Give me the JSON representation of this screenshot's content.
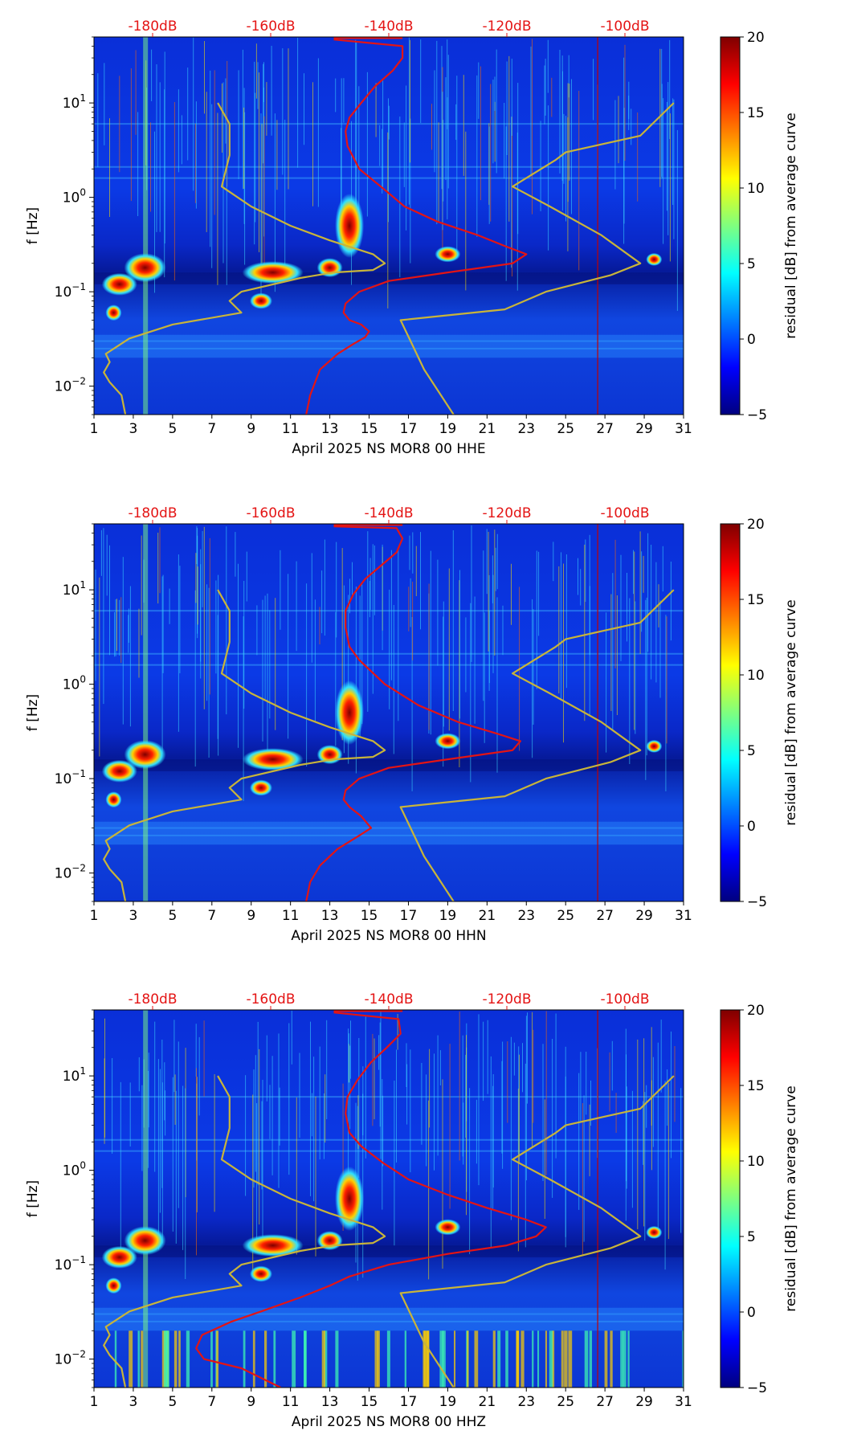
{
  "chart_data": [
    {
      "type": "heatmap",
      "title": "",
      "xlabel": "April 2025 NS MOR8 00 HHE",
      "ylabel": "f [Hz]",
      "x_ticks": [
        "1",
        "3",
        "5",
        "7",
        "9",
        "11",
        "13",
        "15",
        "17",
        "19",
        "21",
        "23",
        "25",
        "27",
        "29",
        "31"
      ],
      "xlim": [
        1,
        31
      ],
      "ylim": [
        0.005,
        50
      ],
      "y_scale": "log",
      "y_ticks": [
        {
          "base": "10",
          "exp": "−2"
        },
        {
          "base": "10",
          "exp": "−1"
        },
        {
          "base": "10",
          "exp": "0"
        },
        {
          "base": "10",
          "exp": "1"
        }
      ],
      "top_ticks": [
        "-180dB",
        "-160dB",
        "-140dB",
        "-120dB",
        "-100dB"
      ],
      "colorbar": {
        "label": "residual [dB] from average curve",
        "ticks": [
          "20",
          "15",
          "10",
          "5",
          "0",
          "−5"
        ],
        "range": [
          -5,
          20
        ]
      },
      "series": [
        {
          "color": "#e41414",
          "points": [
            [
              11.8,
              0.005
            ],
            [
              12.0,
              0.008
            ],
            [
              12.5,
              0.015
            ],
            [
              13.4,
              0.022
            ],
            [
              14.2,
              0.028
            ],
            [
              14.8,
              0.033
            ],
            [
              15.0,
              0.038
            ],
            [
              14.6,
              0.045
            ],
            [
              14.0,
              0.05
            ],
            [
              13.7,
              0.06
            ],
            [
              13.8,
              0.075
            ],
            [
              14.5,
              0.1
            ],
            [
              16.0,
              0.13
            ],
            [
              19.0,
              0.16
            ],
            [
              22.3,
              0.2
            ],
            [
              23.0,
              0.25
            ],
            [
              22.0,
              0.3
            ],
            [
              20.5,
              0.4
            ],
            [
              18.5,
              0.55
            ],
            [
              16.8,
              0.8
            ],
            [
              15.8,
              1.2
            ],
            [
              14.5,
              2.0
            ],
            [
              13.9,
              3.5
            ],
            [
              13.8,
              5.0
            ],
            [
              14.0,
              7.0
            ],
            [
              14.6,
              10.0
            ],
            [
              15.3,
              15.0
            ],
            [
              16.2,
              22.0
            ],
            [
              16.7,
              30.0
            ],
            [
              16.7,
              40.0
            ],
            [
              13.2,
              47.0
            ]
          ]
        },
        {
          "color": "#c8b43a",
          "points": [
            [
              2.6,
              0.005
            ],
            [
              2.4,
              0.008
            ],
            [
              1.8,
              0.011
            ],
            [
              1.5,
              0.014
            ],
            [
              1.8,
              0.018
            ],
            [
              1.6,
              0.022
            ],
            [
              2.8,
              0.032
            ],
            [
              5.0,
              0.045
            ],
            [
              8.5,
              0.06
            ],
            [
              7.9,
              0.08
            ],
            [
              8.5,
              0.1
            ],
            [
              11.5,
              0.14
            ],
            [
              13.2,
              0.16
            ],
            [
              15.2,
              0.17
            ],
            [
              15.8,
              0.2
            ],
            [
              15.2,
              0.25
            ],
            [
              13.0,
              0.35
            ],
            [
              11.0,
              0.5
            ],
            [
              9.0,
              0.8
            ],
            [
              7.5,
              1.3
            ],
            [
              7.9,
              2.8
            ],
            [
              7.9,
              6.0
            ],
            [
              7.3,
              10.0
            ]
          ]
        },
        {
          "color": "#c8b43a",
          "points": [
            [
              19.3,
              0.005
            ],
            [
              17.8,
              0.015
            ],
            [
              16.6,
              0.05
            ],
            [
              21.9,
              0.065
            ],
            [
              24.0,
              0.1
            ],
            [
              27.3,
              0.15
            ],
            [
              28.8,
              0.2
            ],
            [
              26.8,
              0.4
            ],
            [
              24.2,
              0.8
            ],
            [
              22.3,
              1.3
            ],
            [
              24.5,
              2.5
            ],
            [
              25.0,
              3.0
            ],
            [
              28.8,
              4.5
            ],
            [
              30.5,
              10.0
            ]
          ]
        }
      ]
    },
    {
      "type": "heatmap",
      "title": "",
      "xlabel": "April 2025 NS MOR8 00 HHN",
      "ylabel": "f [Hz]",
      "x_ticks": [
        "1",
        "3",
        "5",
        "7",
        "9",
        "11",
        "13",
        "15",
        "17",
        "19",
        "21",
        "23",
        "25",
        "27",
        "29",
        "31"
      ],
      "xlim": [
        1,
        31
      ],
      "ylim": [
        0.005,
        50
      ],
      "y_scale": "log",
      "y_ticks": [
        {
          "base": "10",
          "exp": "−2"
        },
        {
          "base": "10",
          "exp": "−1"
        },
        {
          "base": "10",
          "exp": "0"
        },
        {
          "base": "10",
          "exp": "1"
        }
      ],
      "top_ticks": [
        "-180dB",
        "-160dB",
        "-140dB",
        "-120dB",
        "-100dB"
      ],
      "colorbar": {
        "label": "residual [dB] from average curve",
        "ticks": [
          "20",
          "15",
          "10",
          "5",
          "0",
          "−5"
        ],
        "range": [
          -5,
          20
        ]
      },
      "series": [
        {
          "color": "#e41414",
          "points": [
            [
              11.8,
              0.005
            ],
            [
              12.0,
              0.008
            ],
            [
              12.5,
              0.012
            ],
            [
              13.4,
              0.018
            ],
            [
              14.5,
              0.025
            ],
            [
              15.1,
              0.03
            ],
            [
              14.6,
              0.04
            ],
            [
              14.0,
              0.05
            ],
            [
              13.7,
              0.06
            ],
            [
              13.8,
              0.075
            ],
            [
              14.5,
              0.1
            ],
            [
              16.0,
              0.13
            ],
            [
              19.0,
              0.16
            ],
            [
              22.3,
              0.2
            ],
            [
              22.7,
              0.25
            ],
            [
              21.5,
              0.3
            ],
            [
              19.5,
              0.4
            ],
            [
              17.5,
              0.6
            ],
            [
              15.8,
              1.0
            ],
            [
              14.5,
              1.8
            ],
            [
              14.0,
              2.5
            ],
            [
              13.8,
              4.0
            ],
            [
              13.8,
              6.0
            ],
            [
              14.2,
              9.0
            ],
            [
              14.8,
              13.0
            ],
            [
              15.6,
              18.0
            ],
            [
              16.4,
              25.0
            ],
            [
              16.7,
              35.0
            ],
            [
              16.4,
              45.0
            ],
            [
              13.2,
              47.0
            ]
          ]
        },
        {
          "color": "#c8b43a",
          "points": [
            [
              2.6,
              0.005
            ],
            [
              2.4,
              0.008
            ],
            [
              1.8,
              0.011
            ],
            [
              1.5,
              0.014
            ],
            [
              1.8,
              0.018
            ],
            [
              1.6,
              0.022
            ],
            [
              2.8,
              0.032
            ],
            [
              5.0,
              0.045
            ],
            [
              8.5,
              0.06
            ],
            [
              7.9,
              0.08
            ],
            [
              8.5,
              0.1
            ],
            [
              11.5,
              0.14
            ],
            [
              13.2,
              0.16
            ],
            [
              15.2,
              0.17
            ],
            [
              15.8,
              0.2
            ],
            [
              15.2,
              0.25
            ],
            [
              13.0,
              0.35
            ],
            [
              11.0,
              0.5
            ],
            [
              9.0,
              0.8
            ],
            [
              7.5,
              1.3
            ],
            [
              7.9,
              2.8
            ],
            [
              7.9,
              6.0
            ],
            [
              7.3,
              10.0
            ]
          ]
        },
        {
          "color": "#c8b43a",
          "points": [
            [
              19.3,
              0.005
            ],
            [
              17.8,
              0.015
            ],
            [
              16.6,
              0.05
            ],
            [
              21.9,
              0.065
            ],
            [
              24.0,
              0.1
            ],
            [
              27.3,
              0.15
            ],
            [
              28.8,
              0.2
            ],
            [
              26.8,
              0.4
            ],
            [
              24.2,
              0.8
            ],
            [
              22.3,
              1.3
            ],
            [
              24.5,
              2.5
            ],
            [
              25.0,
              3.0
            ],
            [
              28.8,
              4.5
            ],
            [
              30.5,
              10.0
            ]
          ]
        }
      ]
    },
    {
      "type": "heatmap",
      "title": "",
      "xlabel": "April 2025 NS MOR8 00 HHZ",
      "ylabel": "f [Hz]",
      "x_ticks": [
        "1",
        "3",
        "5",
        "7",
        "9",
        "11",
        "13",
        "15",
        "17",
        "19",
        "21",
        "23",
        "25",
        "27",
        "29",
        "31"
      ],
      "xlim": [
        1,
        31
      ],
      "ylim": [
        0.005,
        50
      ],
      "y_scale": "log",
      "y_ticks": [
        {
          "base": "10",
          "exp": "−2"
        },
        {
          "base": "10",
          "exp": "−1"
        },
        {
          "base": "10",
          "exp": "0"
        },
        {
          "base": "10",
          "exp": "1"
        }
      ],
      "top_ticks": [
        "-180dB",
        "-160dB",
        "-140dB",
        "-120dB",
        "-100dB"
      ],
      "colorbar": {
        "label": "residual [dB] from average curve",
        "ticks": [
          "20",
          "15",
          "10",
          "5",
          "0",
          "−5"
        ],
        "range": [
          -5,
          20
        ]
      },
      "series": [
        {
          "color": "#e41414",
          "points": [
            [
              10.5,
              0.005
            ],
            [
              8.5,
              0.008
            ],
            [
              6.6,
              0.01
            ],
            [
              6.2,
              0.013
            ],
            [
              6.5,
              0.018
            ],
            [
              8.0,
              0.025
            ],
            [
              9.5,
              0.032
            ],
            [
              11.5,
              0.045
            ],
            [
              13.0,
              0.06
            ],
            [
              14.0,
              0.075
            ],
            [
              16.0,
              0.1
            ],
            [
              19.0,
              0.13
            ],
            [
              22.0,
              0.16
            ],
            [
              23.5,
              0.2
            ],
            [
              24.0,
              0.25
            ],
            [
              23.0,
              0.3
            ],
            [
              21.0,
              0.4
            ],
            [
              19.0,
              0.55
            ],
            [
              17.0,
              0.8
            ],
            [
              15.7,
              1.2
            ],
            [
              14.6,
              1.8
            ],
            [
              14.0,
              2.5
            ],
            [
              13.8,
              4.0
            ],
            [
              13.9,
              6.0
            ],
            [
              14.4,
              9.0
            ],
            [
              15.1,
              14.0
            ],
            [
              15.9,
              20.0
            ],
            [
              16.6,
              28.0
            ],
            [
              16.5,
              40.0
            ],
            [
              13.2,
              47.0
            ]
          ]
        },
        {
          "color": "#c8b43a",
          "points": [
            [
              2.6,
              0.005
            ],
            [
              2.4,
              0.008
            ],
            [
              1.8,
              0.011
            ],
            [
              1.5,
              0.014
            ],
            [
              1.8,
              0.018
            ],
            [
              1.6,
              0.022
            ],
            [
              2.8,
              0.032
            ],
            [
              5.0,
              0.045
            ],
            [
              8.5,
              0.06
            ],
            [
              7.9,
              0.08
            ],
            [
              8.5,
              0.1
            ],
            [
              11.5,
              0.14
            ],
            [
              13.2,
              0.16
            ],
            [
              15.2,
              0.17
            ],
            [
              15.8,
              0.2
            ],
            [
              15.2,
              0.25
            ],
            [
              13.0,
              0.35
            ],
            [
              11.0,
              0.5
            ],
            [
              9.0,
              0.8
            ],
            [
              7.5,
              1.3
            ],
            [
              7.9,
              2.8
            ],
            [
              7.9,
              6.0
            ],
            [
              7.3,
              10.0
            ]
          ]
        },
        {
          "color": "#c8b43a",
          "points": [
            [
              19.3,
              0.005
            ],
            [
              17.8,
              0.015
            ],
            [
              16.6,
              0.05
            ],
            [
              21.9,
              0.065
            ],
            [
              24.0,
              0.1
            ],
            [
              27.3,
              0.15
            ],
            [
              28.8,
              0.2
            ],
            [
              26.8,
              0.4
            ],
            [
              24.2,
              0.8
            ],
            [
              22.3,
              1.3
            ],
            [
              24.5,
              2.5
            ],
            [
              25.0,
              3.0
            ],
            [
              28.8,
              4.5
            ],
            [
              30.5,
              10.0
            ]
          ]
        }
      ]
    }
  ],
  "style": {
    "axis_color": "#000000",
    "top_tick_color": "#e41414",
    "cmap": [
      "#00007f",
      "#0000ff",
      "#007fff",
      "#00ffff",
      "#7fff7f",
      "#ffff00",
      "#ff7f00",
      "#ff0000",
      "#7f0000"
    ]
  }
}
